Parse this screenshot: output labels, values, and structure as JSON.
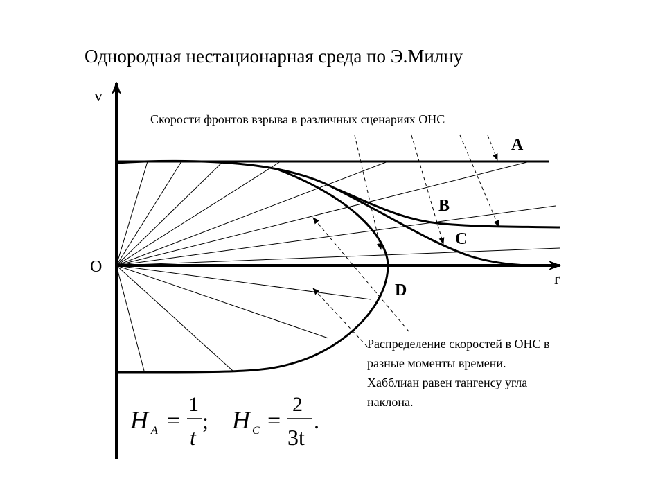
{
  "title": "Однородная нестационарная среда по Э.Милну",
  "subtitle": "Скорости фронтов взрыва в различных сценариях ОНС",
  "axes": {
    "y_label": "v",
    "x_label": "r",
    "origin_label": "O"
  },
  "curve_labels": {
    "a": "A",
    "b": "B",
    "c": "C",
    "d": "D"
  },
  "note_lines": [
    "Распределение скоростей в ОНС в",
    "разные моменты времени.",
    "Хабблиан равен тангенсу угла",
    "наклона."
  ],
  "formula": {
    "h": "H",
    "sub_a": "A",
    "eq": "=",
    "num_a": "1",
    "den_a": "t",
    "sep": ";",
    "sub_c": "C",
    "num_c": "2",
    "den_c": "3t",
    "end": "."
  }
}
